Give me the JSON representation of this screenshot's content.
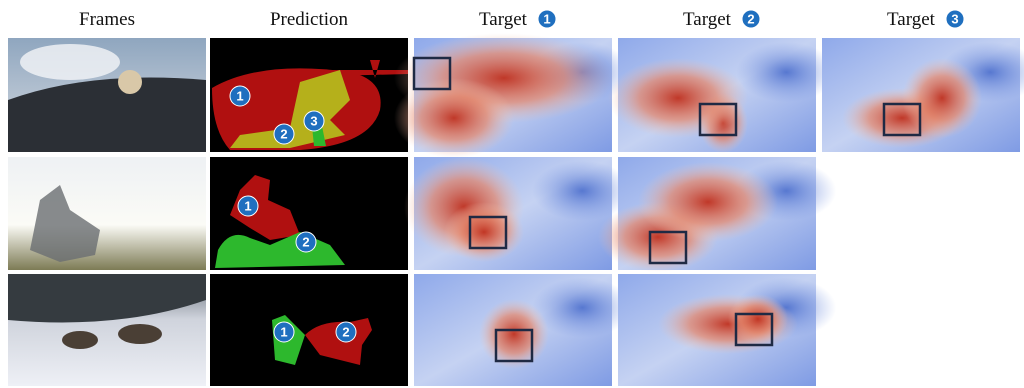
{
  "headers": [
    {
      "text": "Frames"
    },
    {
      "text": "Prediction"
    },
    {
      "text": "Target",
      "badge": "1"
    },
    {
      "text": "Target",
      "badge": "2"
    },
    {
      "text": "Target",
      "badge": "3"
    }
  ],
  "rows": [
    {
      "prediction_badges": [
        "1",
        "2",
        "3"
      ]
    },
    {
      "prediction_badges": [
        "1",
        "2"
      ]
    },
    {
      "prediction_badges": [
        "1",
        "2"
      ]
    }
  ]
}
